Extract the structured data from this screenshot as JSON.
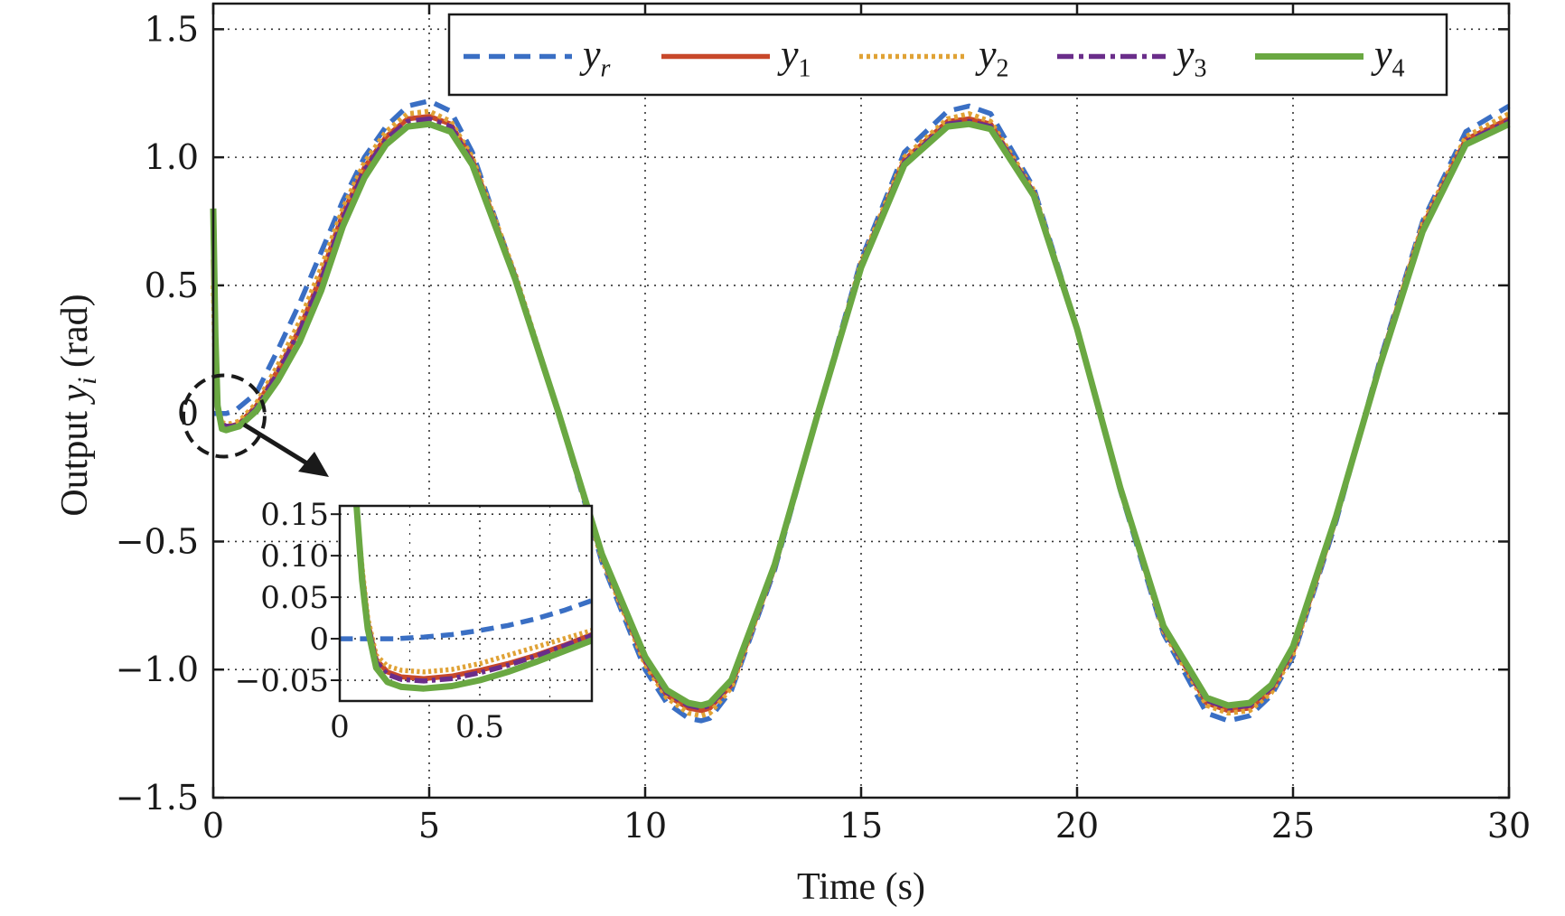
{
  "chart_data": [
    {
      "id": "main",
      "type": "line",
      "xlabel": "Time (s)",
      "ylabel_prefix": "Output ",
      "ylabel_var": "y",
      "ylabel_sub": "i",
      "ylabel_suffix": " (rad)",
      "xlim": [
        0,
        30
      ],
      "ylim": [
        -1.5,
        1.6
      ],
      "xticks": [
        0,
        5,
        10,
        15,
        20,
        25,
        30
      ],
      "xtick_labels": [
        "0",
        "5",
        "10",
        "15",
        "20",
        "25",
        "30"
      ],
      "yticks": [
        -1.5,
        -1.0,
        -0.5,
        0,
        0.5,
        1.0,
        1.5
      ],
      "ytick_labels": [
        "−1.5",
        "−1.0",
        "−0.5",
        "0",
        "0.5",
        "1.0",
        "1.5"
      ],
      "grid": true,
      "legend_position": "top-right",
      "series": [
        {
          "name": "y",
          "sub": "r",
          "color": "#3a6fc4",
          "dash": "dashed",
          "x": [
            0,
            0.1,
            0.3,
            0.5,
            1,
            1.5,
            2,
            2.5,
            3,
            3.5,
            4,
            4.5,
            5,
            5.5,
            6,
            7,
            8,
            9,
            10,
            10.5,
            11,
            11.3,
            11.5,
            12,
            13,
            14,
            15,
            16,
            17,
            17.5,
            18,
            19,
            20,
            21,
            22,
            23,
            23.5,
            24,
            24.5,
            25,
            26,
            27,
            28,
            29,
            30
          ],
          "y": [
            0,
            0.0,
            0.0,
            0.01,
            0.08,
            0.25,
            0.43,
            0.63,
            0.83,
            1.0,
            1.12,
            1.2,
            1.22,
            1.18,
            1.02,
            0.53,
            0.0,
            -0.58,
            -1.0,
            -1.13,
            -1.19,
            -1.2,
            -1.19,
            -1.08,
            -0.61,
            0.0,
            0.6,
            1.02,
            1.18,
            1.2,
            1.17,
            0.88,
            0.33,
            -0.3,
            -0.86,
            -1.17,
            -1.2,
            -1.18,
            -1.1,
            -0.95,
            -0.42,
            0.2,
            0.75,
            1.1,
            1.2
          ]
        },
        {
          "name": "y",
          "sub": "1",
          "color": "#c8482a",
          "dash": "solid",
          "x": [
            0,
            0.05,
            0.1,
            0.2,
            0.3,
            0.4,
            0.6,
            1,
            1.5,
            2,
            2.5,
            3,
            3.5,
            4,
            4.5,
            5,
            5.5,
            6,
            7,
            8,
            9,
            10,
            10.5,
            11,
            11.3,
            11.5,
            12,
            13,
            14,
            15,
            16,
            17,
            17.5,
            18,
            19,
            20,
            21,
            22,
            23,
            23.5,
            24,
            24.5,
            25,
            26,
            27,
            28,
            29,
            30
          ],
          "y": [
            0.6,
            0.2,
            0.03,
            -0.04,
            -0.05,
            -0.05,
            -0.04,
            0.03,
            0.17,
            0.33,
            0.54,
            0.78,
            0.96,
            1.08,
            1.15,
            1.16,
            1.13,
            0.99,
            0.53,
            0.0,
            -0.56,
            -0.97,
            -1.1,
            -1.15,
            -1.16,
            -1.15,
            -1.06,
            -0.6,
            0.0,
            0.58,
            0.99,
            1.14,
            1.15,
            1.13,
            0.86,
            0.33,
            -0.29,
            -0.84,
            -1.13,
            -1.16,
            -1.15,
            -1.08,
            -0.93,
            -0.41,
            0.19,
            0.73,
            1.07,
            1.15
          ]
        },
        {
          "name": "y",
          "sub": "2",
          "color": "#e0a235",
          "dash": "dotted",
          "x": [
            0,
            0.05,
            0.1,
            0.2,
            0.3,
            0.4,
            0.6,
            1,
            1.5,
            2,
            2.5,
            3,
            3.5,
            4,
            4.5,
            5,
            5.5,
            6,
            7,
            8,
            9,
            10,
            10.5,
            11,
            11.3,
            11.5,
            12,
            13,
            14,
            15,
            16,
            17,
            17.5,
            18,
            19,
            20,
            21,
            22,
            23,
            23.5,
            24,
            24.5,
            25,
            26,
            27,
            28,
            29,
            30
          ],
          "y": [
            0.5,
            0.15,
            0.02,
            -0.035,
            -0.04,
            -0.04,
            -0.03,
            0.04,
            0.19,
            0.36,
            0.57,
            0.8,
            0.98,
            1.1,
            1.17,
            1.18,
            1.14,
            1.0,
            0.54,
            0.0,
            -0.57,
            -0.98,
            -1.11,
            -1.17,
            -1.18,
            -1.17,
            -1.07,
            -0.6,
            0.0,
            0.59,
            1.0,
            1.15,
            1.17,
            1.14,
            0.87,
            0.33,
            -0.29,
            -0.85,
            -1.14,
            -1.17,
            -1.16,
            -1.09,
            -0.94,
            -0.41,
            0.19,
            0.74,
            1.08,
            1.17
          ]
        },
        {
          "name": "y",
          "sub": "3",
          "color": "#6a2d8a",
          "dash": "dashdot",
          "x": [
            0,
            0.05,
            0.1,
            0.2,
            0.3,
            0.4,
            0.6,
            1,
            1.5,
            2,
            2.5,
            3,
            3.5,
            4,
            4.5,
            5,
            5.5,
            6,
            7,
            8,
            9,
            10,
            10.5,
            11,
            11.3,
            11.5,
            12,
            13,
            14,
            15,
            16,
            17,
            17.5,
            18,
            19,
            20,
            21,
            22,
            23,
            23.5,
            24,
            24.5,
            25,
            26,
            27,
            28,
            29,
            30
          ],
          "y": [
            0.7,
            0.25,
            0.04,
            -0.045,
            -0.05,
            -0.05,
            -0.045,
            0.02,
            0.16,
            0.32,
            0.52,
            0.76,
            0.95,
            1.07,
            1.14,
            1.15,
            1.12,
            0.98,
            0.53,
            0.0,
            -0.56,
            -0.96,
            -1.09,
            -1.14,
            -1.15,
            -1.14,
            -1.05,
            -0.6,
            0.0,
            0.58,
            0.98,
            1.13,
            1.14,
            1.12,
            0.86,
            0.33,
            -0.29,
            -0.84,
            -1.12,
            -1.15,
            -1.14,
            -1.07,
            -0.92,
            -0.41,
            0.19,
            0.72,
            1.06,
            1.14
          ]
        },
        {
          "name": "y",
          "sub": "4",
          "color": "#6aa842",
          "dash": "solid",
          "x": [
            0,
            0.05,
            0.1,
            0.2,
            0.3,
            0.4,
            0.6,
            1,
            1.5,
            2,
            2.5,
            3,
            3.5,
            4,
            4.5,
            5,
            5.5,
            6,
            7,
            8,
            9,
            10,
            10.5,
            11,
            11.3,
            11.5,
            12,
            13,
            14,
            15,
            16,
            17,
            17.5,
            18,
            19,
            20,
            21,
            22,
            23,
            23.5,
            24,
            24.5,
            25,
            26,
            27,
            28,
            29,
            30
          ],
          "y": [
            0.8,
            0.3,
            0.03,
            -0.06,
            -0.065,
            -0.06,
            -0.05,
            0.01,
            0.13,
            0.28,
            0.48,
            0.73,
            0.92,
            1.05,
            1.12,
            1.13,
            1.1,
            0.97,
            0.52,
            0.0,
            -0.55,
            -0.95,
            -1.08,
            -1.13,
            -1.14,
            -1.13,
            -1.04,
            -0.59,
            0.0,
            0.57,
            0.97,
            1.12,
            1.13,
            1.11,
            0.85,
            0.33,
            -0.29,
            -0.83,
            -1.11,
            -1.14,
            -1.13,
            -1.06,
            -0.91,
            -0.4,
            0.18,
            0.71,
            1.05,
            1.13
          ]
        }
      ]
    },
    {
      "id": "inset",
      "type": "line",
      "xlim": [
        0,
        0.9
      ],
      "ylim": [
        -0.075,
        0.16
      ],
      "xticks": [
        0,
        0.5
      ],
      "xtick_labels": [
        "0",
        "0.5"
      ],
      "yticks": [
        -0.05,
        0,
        0.05,
        0.1,
        0.15
      ],
      "ytick_labels": [
        "−0.05",
        "0",
        "0.05",
        "0.10",
        "0.15"
      ],
      "grid": true,
      "series": [
        {
          "name": "y",
          "sub": "r",
          "color": "#3a6fc4",
          "dash": "dashed",
          "x": [
            0,
            0.1,
            0.2,
            0.3,
            0.4,
            0.5,
            0.6,
            0.7,
            0.8,
            0.9
          ],
          "y": [
            0,
            0.0,
            0.0,
            0.002,
            0.005,
            0.01,
            0.016,
            0.024,
            0.034,
            0.046
          ]
        },
        {
          "name": "y",
          "sub": "1",
          "color": "#c8482a",
          "dash": "solid",
          "x": [
            0.06,
            0.08,
            0.1,
            0.13,
            0.17,
            0.22,
            0.3,
            0.4,
            0.5,
            0.6,
            0.7,
            0.8,
            0.9
          ],
          "y": [
            0.16,
            0.08,
            0.02,
            -0.025,
            -0.04,
            -0.046,
            -0.048,
            -0.045,
            -0.038,
            -0.03,
            -0.02,
            -0.008,
            0.005
          ]
        },
        {
          "name": "y",
          "sub": "2",
          "color": "#e0a235",
          "dash": "dotted",
          "x": [
            0.06,
            0.08,
            0.1,
            0.13,
            0.17,
            0.22,
            0.3,
            0.4,
            0.5,
            0.6,
            0.7,
            0.8,
            0.9
          ],
          "y": [
            0.16,
            0.085,
            0.025,
            -0.02,
            -0.033,
            -0.038,
            -0.04,
            -0.037,
            -0.03,
            -0.02,
            -0.01,
            0.0,
            0.01
          ]
        },
        {
          "name": "y",
          "sub": "3",
          "color": "#6a2d8a",
          "dash": "dashdot",
          "x": [
            0.06,
            0.08,
            0.1,
            0.13,
            0.17,
            0.22,
            0.3,
            0.4,
            0.5,
            0.6,
            0.7,
            0.8,
            0.9
          ],
          "y": [
            0.16,
            0.075,
            0.018,
            -0.028,
            -0.043,
            -0.049,
            -0.051,
            -0.048,
            -0.041,
            -0.032,
            -0.021,
            -0.009,
            0.004
          ]
        },
        {
          "name": "y",
          "sub": "4",
          "color": "#6aa842",
          "dash": "solid",
          "x": [
            0.06,
            0.08,
            0.1,
            0.13,
            0.17,
            0.22,
            0.3,
            0.4,
            0.5,
            0.6,
            0.7,
            0.8,
            0.9
          ],
          "y": [
            0.16,
            0.07,
            0.012,
            -0.035,
            -0.052,
            -0.058,
            -0.06,
            -0.057,
            -0.05,
            -0.04,
            -0.028,
            -0.015,
            -0.002
          ]
        }
      ]
    }
  ]
}
